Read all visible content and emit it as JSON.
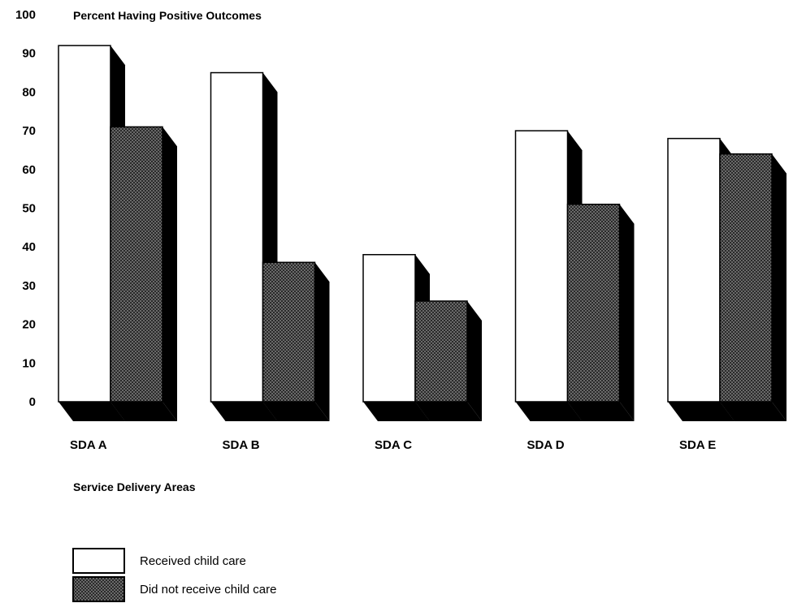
{
  "chart_data": {
    "type": "bar",
    "title": "",
    "ylabel": "Percent Having Positive Outcomes",
    "xlabel": "Service Delivery Areas",
    "categories": [
      "SDA A",
      "SDA B",
      "SDA C",
      "SDA D",
      "SDA E"
    ],
    "ylim": [
      0,
      100
    ],
    "yticks": [
      0,
      10,
      20,
      30,
      40,
      50,
      60,
      70,
      80,
      90,
      100
    ],
    "grid": false,
    "style": "3d",
    "legend_position": "bottom-left",
    "series": [
      {
        "name": "Received child care",
        "values": [
          92,
          85,
          38,
          70,
          68
        ],
        "color": "#ffffff",
        "pattern": "none"
      },
      {
        "name": "Did not receive child care",
        "values": [
          71,
          36,
          26,
          51,
          64
        ],
        "color": "#4a4a4a",
        "pattern": "stipple"
      }
    ]
  }
}
